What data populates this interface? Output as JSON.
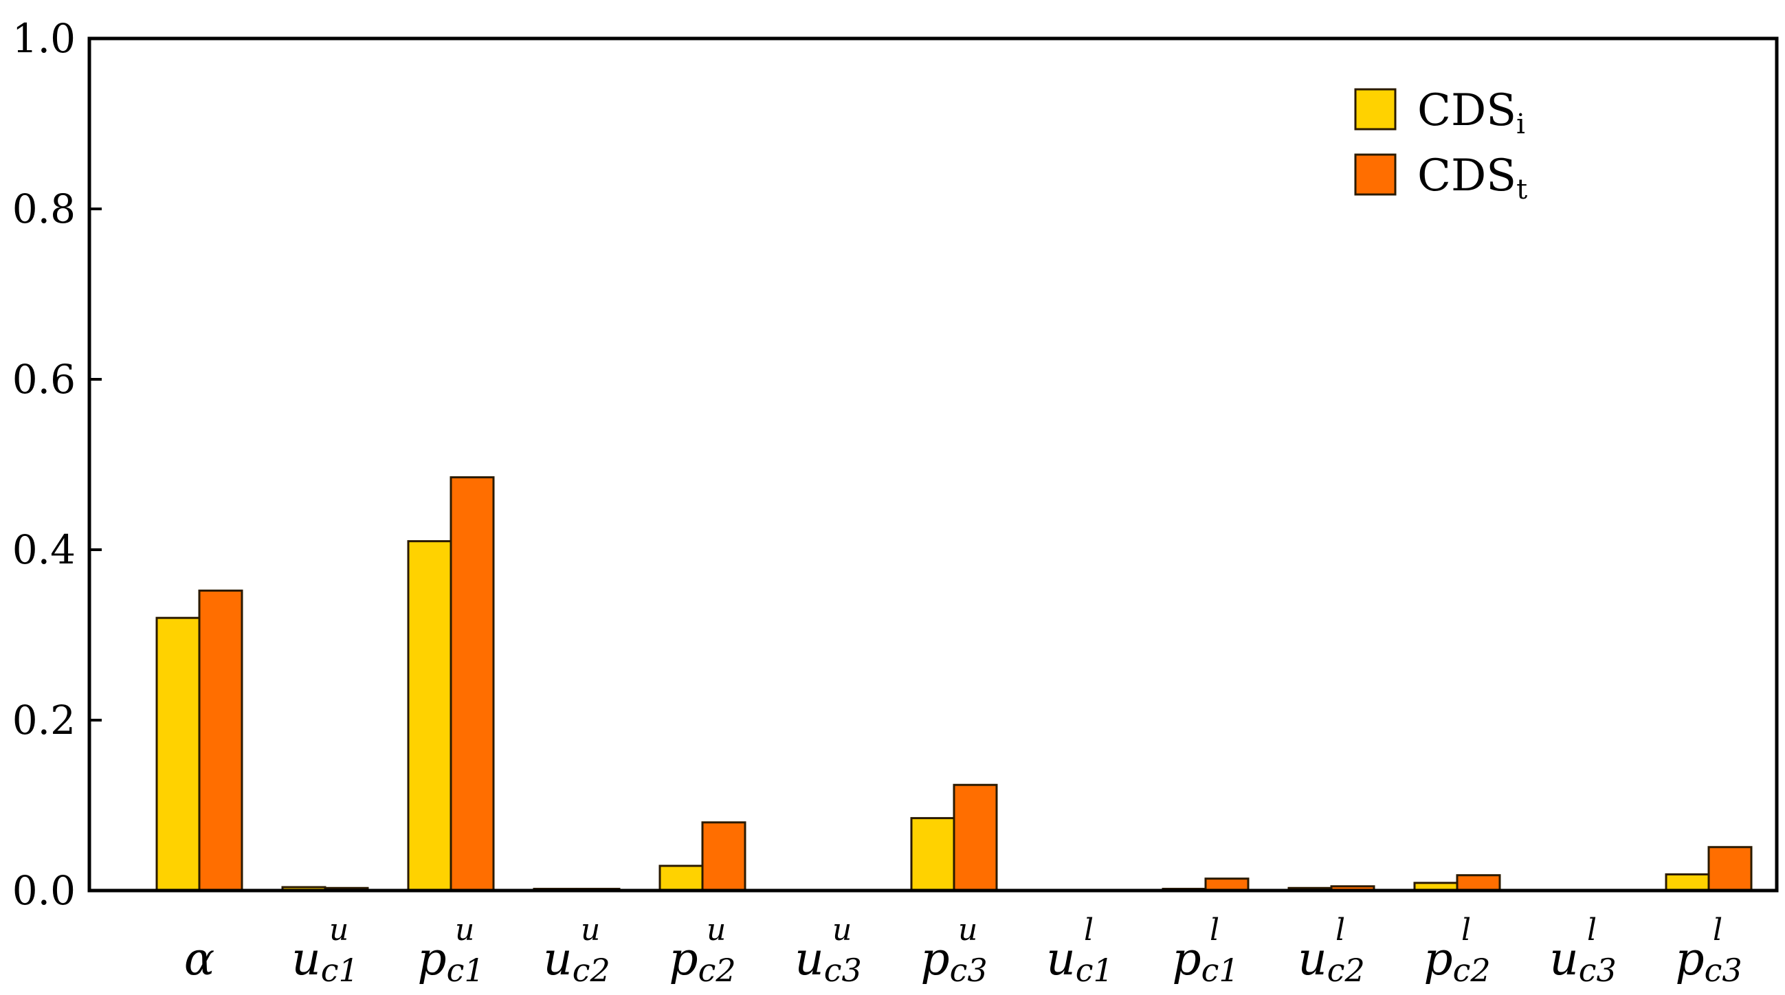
{
  "chart_data": {
    "type": "bar",
    "categories": [
      {
        "base": "α",
        "sup": "",
        "sub": ""
      },
      {
        "base": "u",
        "sup": "u",
        "sub": "c1"
      },
      {
        "base": "p",
        "sup": "u",
        "sub": "c1"
      },
      {
        "base": "u",
        "sup": "u",
        "sub": "c2"
      },
      {
        "base": "p",
        "sup": "u",
        "sub": "c2"
      },
      {
        "base": "u",
        "sup": "u",
        "sub": "c3"
      },
      {
        "base": "p",
        "sup": "u",
        "sub": "c3"
      },
      {
        "base": "u",
        "sup": "l",
        "sub": "c1"
      },
      {
        "base": "p",
        "sup": "l",
        "sub": "c1"
      },
      {
        "base": "u",
        "sup": "l",
        "sub": "c2"
      },
      {
        "base": "p",
        "sup": "l",
        "sub": "c2"
      },
      {
        "base": "u",
        "sup": "l",
        "sub": "c3"
      },
      {
        "base": "p",
        "sup": "l",
        "sub": "c3"
      }
    ],
    "series": [
      {
        "name": "CDS",
        "subscript": "i",
        "color": "#ffd200",
        "values": [
          0.32,
          0.004,
          0.41,
          0.002,
          0.029,
          0.0,
          0.085,
          0.0,
          0.002,
          0.003,
          0.009,
          0.0,
          0.019
        ]
      },
      {
        "name": "CDS",
        "subscript": "t",
        "color": "#ff6e00",
        "values": [
          0.352,
          0.003,
          0.485,
          0.002,
          0.08,
          0.0,
          0.124,
          0.0,
          0.014,
          0.005,
          0.018,
          0.0,
          0.051
        ]
      }
    ],
    "ylim": [
      0,
      1.0
    ],
    "yticks": [
      "0.0",
      "0.2",
      "0.4",
      "0.6",
      "0.8",
      "1.0"
    ],
    "ytick_values": [
      0,
      0.2,
      0.4,
      0.6,
      0.8,
      1.0
    ],
    "title": "",
    "xlabel": "",
    "ylabel": "",
    "legend_position": "top-right",
    "grid": false
  }
}
